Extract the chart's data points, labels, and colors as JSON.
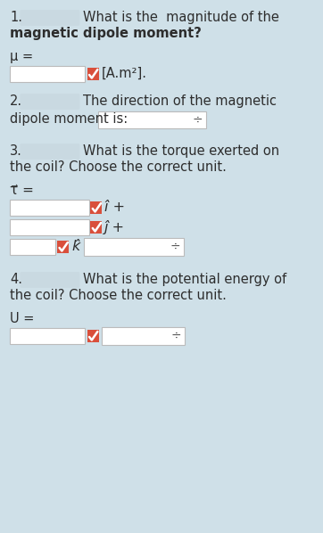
{
  "bg_color": "#cfe0e8",
  "text_color": "#2d2d2d",
  "input_bg": "#ffffff",
  "checkbox_color": "#d94f3b",
  "input_border": "#bbbbbb",
  "fig_w": 3.62,
  "fig_h": 5.98,
  "dpi": 100,
  "sections": [
    {
      "number": "1.",
      "q_line1": "What is the  magnitude of the",
      "q_line2": "magnetic dipole moment?",
      "var_label": "μ =",
      "type": "input_checkbox_unit",
      "unit_text": "[A.m²]."
    },
    {
      "number": "2.",
      "q_line1": "The direction of the magnetic",
      "q_line2": "dipole moment is:",
      "var_label": null,
      "type": "inline_dropdown"
    },
    {
      "number": "3.",
      "q_line1": "What is the torque exerted on",
      "q_line2": "the coil? Choose the correct unit.",
      "var_label": "τ⃗ =",
      "type": "torque_inputs",
      "hats": [
        "î +",
        "ĵ +",
        "k̂"
      ]
    },
    {
      "number": "4.",
      "q_line1": "What is the potential energy of",
      "q_line2": "the coil? Choose the correct unit.",
      "var_label": "U =",
      "type": "energy_input"
    }
  ]
}
